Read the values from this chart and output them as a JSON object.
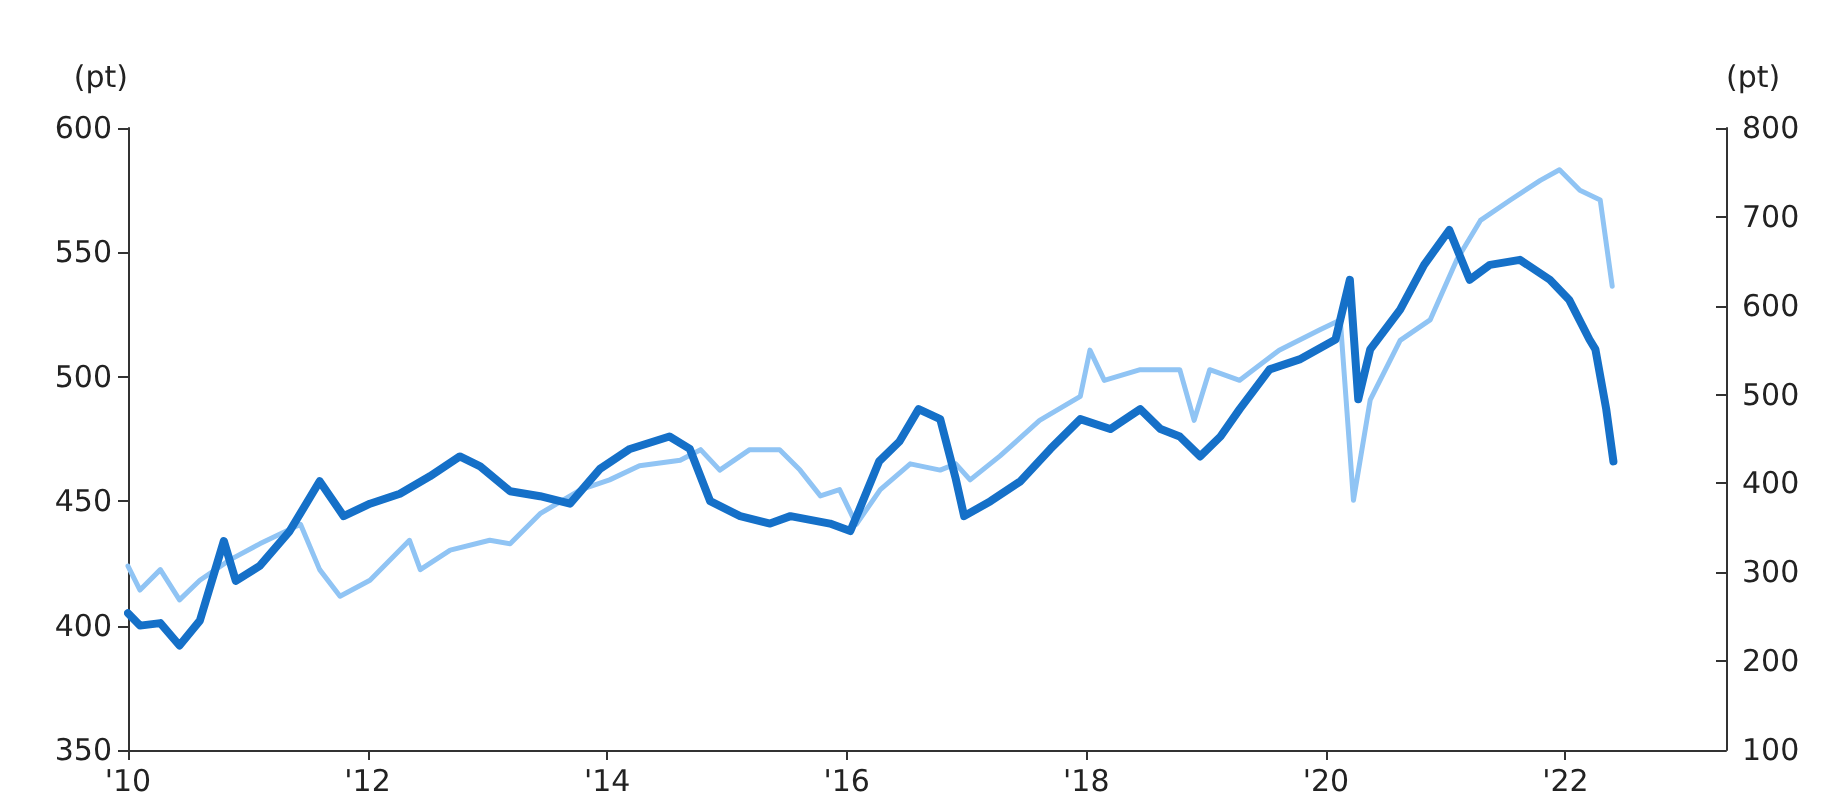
{
  "chart_data": {
    "type": "line",
    "ylabel": "(pt)",
    "y2label": "(pt)",
    "xlim": [
      2010,
      2023.34
    ],
    "ylim": [
      350,
      600
    ],
    "y2lim": [
      100,
      800
    ],
    "xticks": [
      {
        "value": 2010,
        "label": "'10"
      },
      {
        "value": 2012,
        "label": "'12"
      },
      {
        "value": 2014,
        "label": "'14"
      },
      {
        "value": 2016,
        "label": "'16"
      },
      {
        "value": 2018,
        "label": "'18"
      },
      {
        "value": 2020,
        "label": "'20"
      },
      {
        "value": 2022,
        "label": "'22"
      }
    ],
    "yticks": [
      350,
      400,
      450,
      500,
      550,
      600
    ],
    "y2ticks": [
      100,
      200,
      300,
      400,
      500,
      600,
      700,
      800
    ],
    "grid": false,
    "marker": "none",
    "line_style": "solid",
    "series": [
      {
        "color": "#1570c8",
        "x": [
          2010.0,
          2010.1,
          2010.27,
          2010.43,
          2010.6,
          2010.8,
          2010.9,
          2011.1,
          2011.35,
          2011.6,
          2011.8,
          2012.02,
          2012.27,
          2012.52,
          2012.77,
          2012.94,
          2013.19,
          2013.44,
          2013.69,
          2013.94,
          2014.19,
          2014.52,
          2014.69,
          2014.86,
          2015.11,
          2015.36,
          2015.53,
          2015.86,
          2016.03,
          2016.1,
          2016.27,
          2016.44,
          2016.6,
          2016.78,
          2016.91,
          2016.98,
          2017.2,
          2017.45,
          2017.7,
          2017.95,
          2018.2,
          2018.45,
          2018.62,
          2018.78,
          2018.95,
          2019.12,
          2019.28,
          2019.53,
          2019.78,
          2020.08,
          2020.2,
          2020.27,
          2020.37,
          2020.62,
          2020.82,
          2021.03,
          2021.2,
          2021.37,
          2021.62,
          2021.87,
          2022.03,
          2022.2,
          2022.25,
          2022.34,
          2022.4
        ],
        "values": [
          405,
          400,
          401,
          392,
          402,
          434,
          418,
          424,
          438,
          458,
          444,
          449,
          453,
          460,
          468,
          464,
          454,
          452,
          449,
          463,
          471,
          476,
          471,
          450,
          444,
          441,
          444,
          441,
          438,
          446,
          466,
          474,
          487,
          483,
          459,
          444,
          450,
          458,
          471,
          483,
          479,
          487,
          479,
          476,
          468,
          476,
          487,
          503,
          507,
          515,
          539,
          491,
          511,
          527,
          545,
          559,
          539,
          545,
          547,
          539,
          531,
          515,
          511,
          487,
          466
        ]
      },
      {
        "color": "#90c4f4",
        "axis": "y2",
        "x": [
          2010.0,
          2010.1,
          2010.27,
          2010.43,
          2010.6,
          2010.85,
          2011.1,
          2011.44,
          2011.6,
          2011.77,
          2012.02,
          2012.35,
          2012.44,
          2012.69,
          2013.02,
          2013.19,
          2013.44,
          2013.78,
          2014.02,
          2014.27,
          2014.61,
          2014.78,
          2014.94,
          2015.19,
          2015.44,
          2015.61,
          2015.78,
          2015.94,
          2016.08,
          2016.28,
          2016.53,
          2016.78,
          2016.91,
          2017.03,
          2017.28,
          2017.61,
          2017.95,
          2018.03,
          2018.15,
          2018.45,
          2018.78,
          2018.9,
          2019.03,
          2019.28,
          2019.61,
          2019.95,
          2020.12,
          2020.23,
          2020.37,
          2020.62,
          2020.87,
          2021.09,
          2021.29,
          2021.54,
          2021.79,
          2021.95,
          2022.12,
          2022.29,
          2022.39
        ],
        "values": [
          307,
          280,
          303,
          269,
          291,
          314,
          332,
          354,
          303,
          273,
          291,
          336,
          303,
          325,
          336,
          332,
          366,
          393,
          404,
          420,
          426,
          438,
          415,
          438,
          438,
          415,
          386,
          393,
          354,
          393,
          422,
          415,
          422,
          404,
          431,
          471,
          498,
          550,
          516,
          528,
          528,
          471,
          528,
          516,
          550,
          573,
          584,
          381,
          494,
          561,
          584,
          651,
          696,
          719,
          741,
          753,
          730,
          719,
          622
        ]
      }
    ]
  }
}
